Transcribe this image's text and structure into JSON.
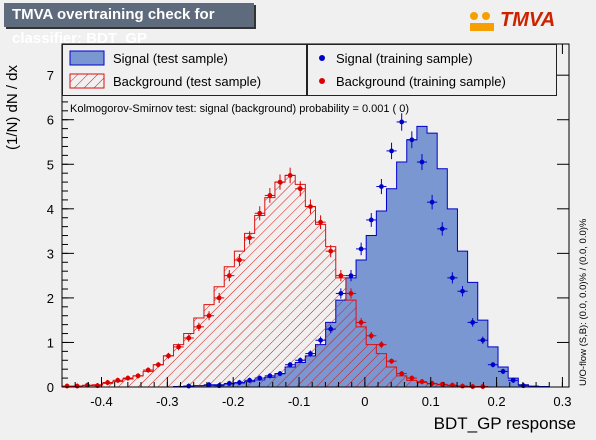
{
  "header": {
    "title": "TMVA overtraining check for classifier: BDT_GP"
  },
  "logo": {
    "text": "TMVA"
  },
  "legend_left": {
    "signal_test": "Signal (test sample)",
    "background_test": "Background (test sample)"
  },
  "legend_right": {
    "signal_training": "Signal (training sample)",
    "background_training": "Background (training sample)"
  },
  "ks_text": "Kolmogorov-Smirnov test: signal (background) probability = 0.001 (    0)",
  "side_text": "U/O-flow (S,B): (0.0, 0.0)% / (0.0, 0.0)%",
  "colors": {
    "signal": "#7b97d2",
    "signal_edge": "#0000cc",
    "background": "#dd1111",
    "signal_dot": "#0000cc",
    "background_dot": "#dd0000"
  },
  "chart_data": {
    "type": "histogram",
    "xlabel": "BDT_GP response",
    "ylabel": "(1/N) dN / dx",
    "xlim": [
      -0.46,
      0.31
    ],
    "ylim": [
      0,
      7.7
    ],
    "x_ticks": [
      "-0.4",
      "-0.3",
      "-0.2",
      "-0.1",
      "0",
      "0.1",
      "0.2",
      "0.3"
    ],
    "x_tick_values": [
      -0.4,
      -0.3,
      -0.2,
      -0.1,
      0,
      0.1,
      0.2,
      0.3
    ],
    "y_ticks": [
      "0",
      "1",
      "2",
      "3",
      "4",
      "5",
      "6",
      "7"
    ],
    "y_tick_values": [
      0,
      1,
      2,
      3,
      4,
      5,
      6,
      7
    ],
    "bin_start": -0.46,
    "bin_width": 0.0154,
    "series": [
      {
        "name": "Signal (test sample)",
        "style": "filled-histogram",
        "values": [
          0,
          0,
          0,
          0,
          0,
          0,
          0,
          0,
          0,
          0,
          0,
          0.01,
          0.02,
          0.03,
          0.04,
          0.05,
          0.07,
          0.09,
          0.12,
          0.16,
          0.22,
          0.3,
          0.45,
          0.55,
          0.7,
          0.95,
          1.45,
          1.95,
          2.45,
          2.85,
          3.4,
          3.95,
          4.45,
          5.05,
          5.55,
          5.85,
          5.7,
          4.9,
          4.0,
          3.05,
          2.35,
          1.5,
          0.9,
          0.45,
          0.2,
          0.05,
          0.02,
          0.01,
          0,
          0
        ]
      },
      {
        "name": "Background (test sample)",
        "style": "hatched-histogram",
        "values": [
          0.01,
          0.02,
          0.03,
          0.05,
          0.08,
          0.12,
          0.18,
          0.25,
          0.35,
          0.5,
          0.7,
          0.95,
          1.2,
          1.55,
          1.85,
          2.25,
          2.7,
          3.05,
          3.45,
          3.85,
          4.25,
          4.6,
          4.75,
          4.55,
          4.05,
          3.65,
          3.15,
          2.45,
          1.95,
          1.35,
          0.95,
          0.75,
          0.45,
          0.25,
          0.15,
          0.1,
          0.07,
          0.05,
          0.03,
          0.02,
          0.01,
          0.01,
          0,
          0,
          0,
          0,
          0,
          0,
          0,
          0
        ]
      },
      {
        "name": "Signal (training sample)",
        "style": "points",
        "values": [
          0,
          0,
          0,
          0,
          0,
          0,
          0,
          0,
          0,
          0,
          0,
          0,
          0.02,
          0,
          0.05,
          0.03,
          0.08,
          0.1,
          0.15,
          0.2,
          0.25,
          0.3,
          0.5,
          0.6,
          0.75,
          1.05,
          1.3,
          2.1,
          2.5,
          3.1,
          3.75,
          4.5,
          5.3,
          5.95,
          5.55,
          5.05,
          4.15,
          3.55,
          2.45,
          2.15,
          1.45,
          1.05,
          0.5,
          0.35,
          0.15,
          0.03,
          0,
          0,
          0,
          0
        ]
      },
      {
        "name": "Background (training sample)",
        "style": "points",
        "values": [
          0.02,
          0.02,
          0.04,
          0.03,
          0.1,
          0.15,
          0.2,
          0.25,
          0.38,
          0.5,
          0.7,
          0.9,
          1.1,
          1.35,
          1.6,
          2.0,
          2.5,
          2.85,
          3.35,
          3.9,
          4.3,
          4.6,
          4.75,
          4.45,
          4.05,
          3.7,
          3.05,
          2.5,
          2.1,
          1.45,
          1.15,
          0.95,
          0.58,
          0.3,
          0.2,
          0.12,
          0.08,
          0.06,
          0.04,
          0.02,
          0.01,
          0.01,
          0,
          0,
          0,
          0,
          0,
          0,
          0,
          0
        ]
      }
    ]
  }
}
